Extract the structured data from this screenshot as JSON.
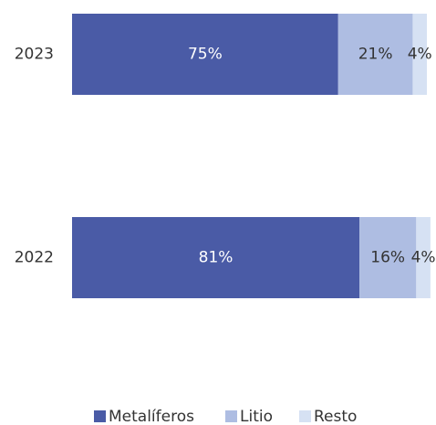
{
  "chart_data": {
    "type": "bar",
    "orientation": "horizontal",
    "stacked": true,
    "percent_stacked": true,
    "categories": [
      "2023",
      "2022"
    ],
    "series": [
      {
        "name": "Metalíferos",
        "values": [
          75,
          81
        ],
        "labels": [
          "75%",
          "81%"
        ],
        "color": "#4a5ba6",
        "label_color": "#ffffff"
      },
      {
        "name": "Litio",
        "values": [
          21,
          16
        ],
        "labels": [
          "21%",
          "16%"
        ],
        "color": "#aebde2",
        "label_color": "#333333"
      },
      {
        "name": "Resto",
        "values": [
          4,
          4
        ],
        "labels": [
          "4%",
          "4%"
        ],
        "color": "#d6e1f3",
        "label_color": "#333333"
      }
    ],
    "xlim": [
      0,
      100
    ],
    "grid": false,
    "legend_position": "bottom"
  }
}
